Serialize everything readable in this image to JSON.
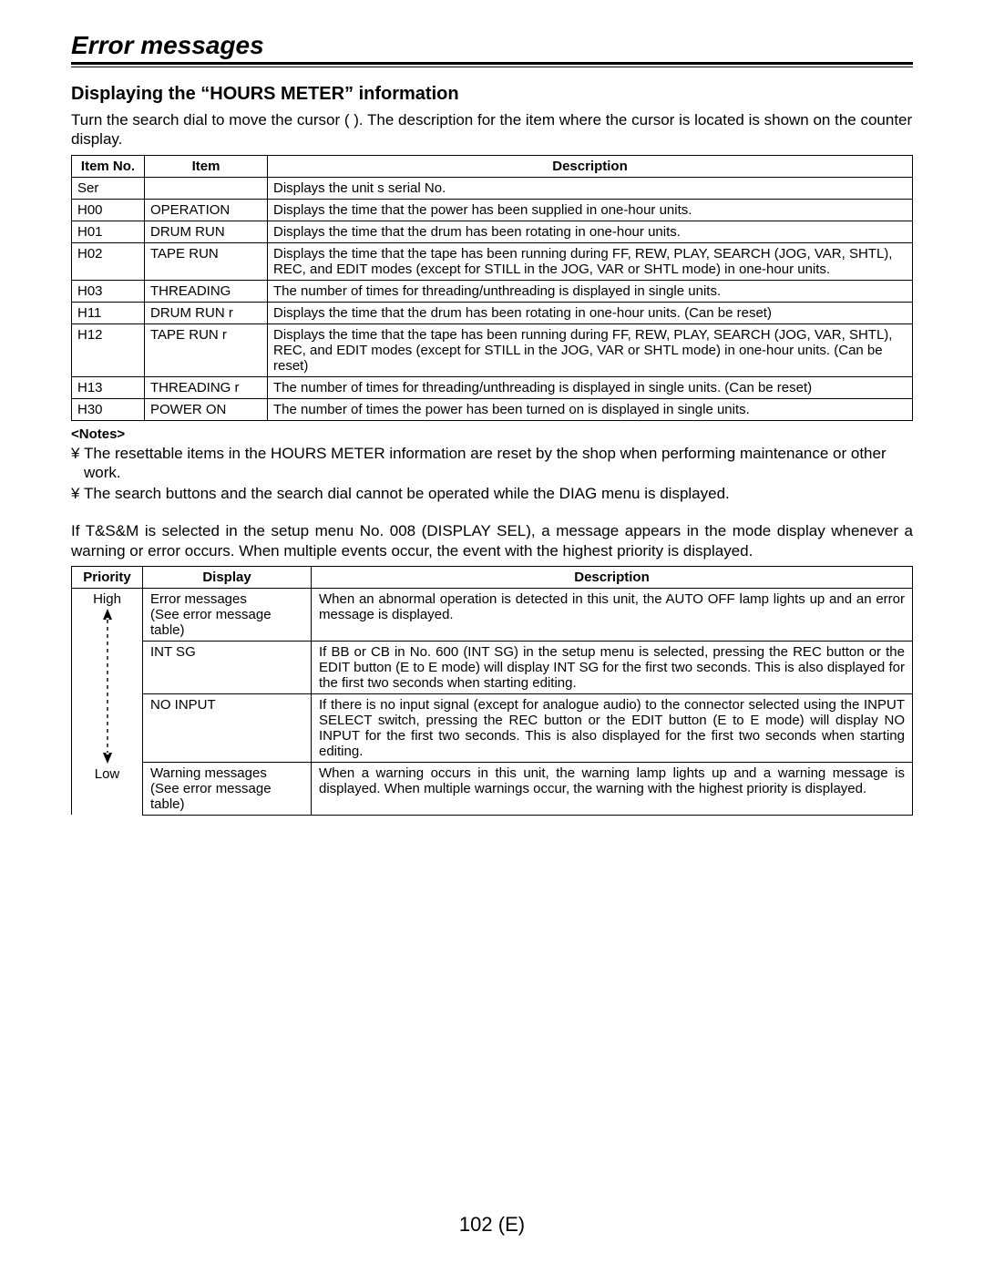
{
  "title": "Error messages",
  "section_title": "Displaying the “HOURS METER” information",
  "intro": "Turn the search dial to move the cursor (     ). The description for the item where the cursor is located is shown on the counter display.",
  "table1": {
    "headers": [
      "Item No.",
      "Item",
      "Description"
    ],
    "rows": [
      [
        "Ser",
        "",
        "Displays the unit s serial No."
      ],
      [
        "H00",
        "OPERATION",
        "Displays the time that the power has been supplied in one-hour units."
      ],
      [
        "H01",
        "DRUM RUN",
        "Displays the time that the drum has been rotating in one-hour units."
      ],
      [
        "H02",
        "TAPE RUN",
        "Displays the time that the tape has been running during FF, REW, PLAY, SEARCH (JOG, VAR, SHTL), REC, and EDIT modes (except for STILL in the JOG, VAR or SHTL mode) in one-hour units."
      ],
      [
        "H03",
        "THREADING",
        "The number of times for threading/unthreading is displayed in single units."
      ],
      [
        "H11",
        "DRUM RUN r",
        "Displays the time that the drum has been rotating in one-hour units. (Can be reset)"
      ],
      [
        "H12",
        "TAPE RUN r",
        "Displays the time that the tape has been running during FF, REW, PLAY, SEARCH (JOG, VAR, SHTL), REC, and EDIT modes (except for STILL in the JOG, VAR or SHTL mode) in one-hour units. (Can be reset)"
      ],
      [
        "H13",
        "THREADING r",
        "The number of times for threading/unthreading is displayed in single units. (Can be reset)"
      ],
      [
        "H30",
        "POWER ON",
        "The number of times the power has been turned on is displayed in single units."
      ]
    ]
  },
  "notes_title": "<Notes>",
  "notes_bullet": "¥",
  "notes": [
    "The resettable items in the  HOURS METER  information are reset by the shop when performing maintenance or other work.",
    "The search buttons and the search dial cannot be operated while the DIAG menu is displayed."
  ],
  "paragraph2": "If  T&S&M  is selected in the setup menu No. 008 (DISPLAY SEL), a message appears in the mode display whenever a warning or error occurs. When multiple events occur, the event with the highest priority is displayed.",
  "table2": {
    "headers": [
      "Priority",
      "Display",
      "Description"
    ],
    "priority_high": "High",
    "priority_low": "Low",
    "rows": [
      {
        "display1": "Error messages",
        "display2": "(See error message table)",
        "desc": "When an abnormal operation is detected in this unit, the AUTO OFF lamp lights up and an error message is displayed."
      },
      {
        "display1": "INT SG",
        "display2": "",
        "desc": "If  BB  or  CB  in No. 600 (INT SG) in the setup menu is selected, pressing the REC button or the EDIT button (E to E mode) will display  INT SG  for the first two seconds. This is also displayed for the first two seconds when starting editing."
      },
      {
        "display1": "NO INPUT",
        "display2": "",
        "desc": "If there is no input signal (except for analogue audio) to the connector selected using the INPUT SELECT switch, pressing the REC button or the EDIT button (E to E mode) will display  NO INPUT  for the first two seconds. This is also displayed for the first two seconds when starting editing."
      },
      {
        "display1": "Warning messages",
        "display2": "(See error message table)",
        "desc": "When a warning occurs in this unit, the warning lamp lights up and a warning message is displayed. When multiple warnings occur, the warning with the highest priority is displayed."
      }
    ]
  },
  "page_number": "102 (E)"
}
